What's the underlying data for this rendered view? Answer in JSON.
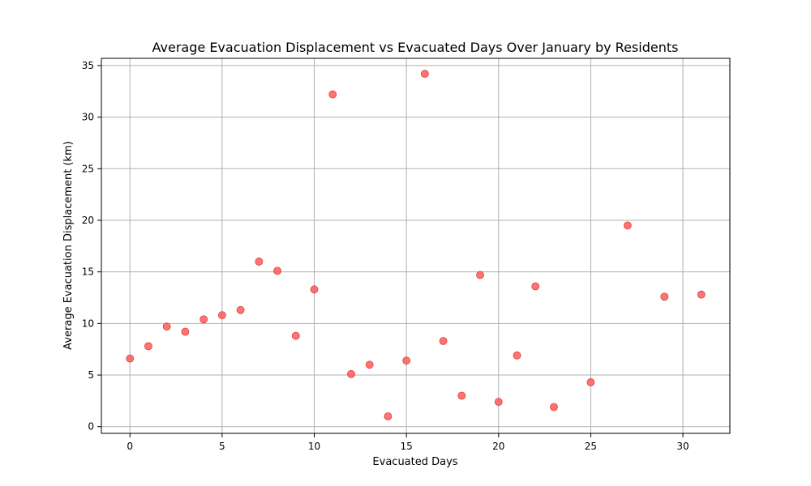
{
  "chart_data": {
    "type": "scatter",
    "title": "Average Evacuation Displacement vs Evacuated Days Over January by Residents",
    "xlabel": "Evacuated Days",
    "ylabel": "Average Evacuation Displacement (km)",
    "xlim": [
      -1.55,
      32.55
    ],
    "ylim": [
      -0.65,
      35.7
    ],
    "xticks": [
      0,
      5,
      10,
      15,
      20,
      25,
      30
    ],
    "yticks": [
      0,
      5,
      10,
      15,
      20,
      25,
      30,
      35
    ],
    "grid": true,
    "marker_color": "#ff5050",
    "marker_edge_color": "#d94040",
    "marker_opacity": 0.8,
    "points": [
      {
        "x": 0,
        "y": 6.6
      },
      {
        "x": 1,
        "y": 7.8
      },
      {
        "x": 2,
        "y": 9.7
      },
      {
        "x": 3,
        "y": 9.2
      },
      {
        "x": 4,
        "y": 10.4
      },
      {
        "x": 5,
        "y": 10.8
      },
      {
        "x": 6,
        "y": 11.3
      },
      {
        "x": 7,
        "y": 16.0
      },
      {
        "x": 8,
        "y": 15.1
      },
      {
        "x": 9,
        "y": 8.8
      },
      {
        "x": 10,
        "y": 13.3
      },
      {
        "x": 11,
        "y": 32.2
      },
      {
        "x": 12,
        "y": 5.1
      },
      {
        "x": 13,
        "y": 6.0
      },
      {
        "x": 14,
        "y": 1.0
      },
      {
        "x": 15,
        "y": 6.4
      },
      {
        "x": 16,
        "y": 34.2
      },
      {
        "x": 17,
        "y": 8.3
      },
      {
        "x": 18,
        "y": 3.0
      },
      {
        "x": 19,
        "y": 14.7
      },
      {
        "x": 20,
        "y": 2.4
      },
      {
        "x": 21,
        "y": 6.9
      },
      {
        "x": 22,
        "y": 13.6
      },
      {
        "x": 23,
        "y": 1.9
      },
      {
        "x": 25,
        "y": 4.3
      },
      {
        "x": 27,
        "y": 19.5
      },
      {
        "x": 29,
        "y": 12.6
      },
      {
        "x": 31,
        "y": 12.8
      }
    ]
  }
}
